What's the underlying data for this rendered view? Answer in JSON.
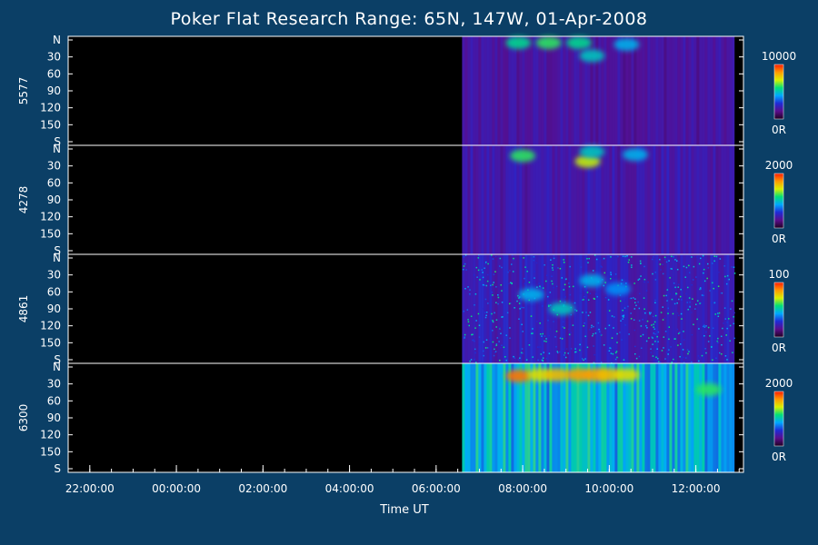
{
  "chart_data": {
    "type": "heatmap",
    "title": "Poker Flat Research Range: 65N, 147W, 01-Apr-2008",
    "xlabel": "Time UT",
    "x_ticks": [
      "22:00:00",
      "00:00:00",
      "02:00:00",
      "04:00:00",
      "06:00:00",
      "08:00:00",
      "10:00:00",
      "12:00:00"
    ],
    "x_range_hours": [
      21.5,
      37.1
    ],
    "data_start_hour": 30.6,
    "y_ticks": [
      "N",
      "30",
      "60",
      "90",
      "120",
      "150",
      "S"
    ],
    "y_range_deg": [
      0,
      180
    ],
    "colormap": [
      "#200020",
      "#5a0d8c",
      "#1f2bd6",
      "#00a8ff",
      "#00e07a",
      "#d7f000",
      "#ff9a00",
      "#ff1a00"
    ],
    "panels": [
      {
        "name": "5577",
        "scale_max": "10000",
        "scale_min": "0R",
        "intensity": 0.18,
        "features": [
          {
            "t": 31.9,
            "angle": 5,
            "level": 0.55
          },
          {
            "t": 32.6,
            "angle": 5,
            "level": 0.6
          },
          {
            "t": 33.3,
            "angle": 5,
            "level": 0.55
          },
          {
            "t": 33.6,
            "angle": 28,
            "level": 0.5
          },
          {
            "t": 34.4,
            "angle": 8,
            "level": 0.45
          }
        ]
      },
      {
        "name": "4278",
        "scale_max": "2000",
        "scale_min": "0R",
        "intensity": 0.2,
        "features": [
          {
            "t": 32.0,
            "angle": 12,
            "level": 0.6
          },
          {
            "t": 33.5,
            "angle": 22,
            "level": 0.7
          },
          {
            "t": 33.6,
            "angle": 5,
            "level": 0.5
          },
          {
            "t": 34.6,
            "angle": 10,
            "level": 0.45
          }
        ]
      },
      {
        "name": "4861",
        "scale_max": "100",
        "scale_min": "0R",
        "intensity": 0.22,
        "features": [
          {
            "t": 32.2,
            "angle": 65,
            "level": 0.45
          },
          {
            "t": 32.9,
            "angle": 90,
            "level": 0.5
          },
          {
            "t": 33.6,
            "angle": 40,
            "level": 0.45
          },
          {
            "t": 34.2,
            "angle": 55,
            "level": 0.4
          }
        ]
      },
      {
        "name": "6300",
        "scale_max": "2000",
        "scale_min": "0R",
        "intensity": 0.45,
        "features": [
          {
            "t": 31.9,
            "angle": 16,
            "level": 0.9
          },
          {
            "t": 32.4,
            "angle": 14,
            "level": 0.75
          },
          {
            "t": 32.8,
            "angle": 14,
            "level": 0.8
          },
          {
            "t": 33.3,
            "angle": 14,
            "level": 0.85
          },
          {
            "t": 33.7,
            "angle": 14,
            "level": 0.85
          },
          {
            "t": 34.0,
            "angle": 14,
            "level": 0.8
          },
          {
            "t": 34.4,
            "angle": 14,
            "level": 0.75
          },
          {
            "t": 36.3,
            "angle": 40,
            "level": 0.6
          }
        ]
      }
    ]
  }
}
